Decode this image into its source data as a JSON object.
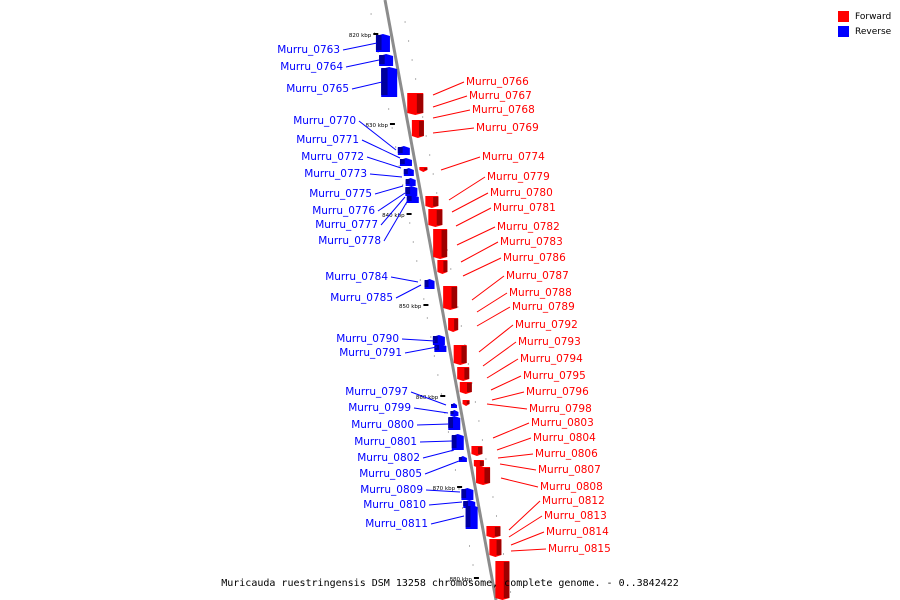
{
  "colors": {
    "forward": "#ff0000",
    "reverse": "#0000ff",
    "chromosome": "#8c8c8c",
    "tick": "#000000"
  },
  "legend": {
    "forward_label": "Forward",
    "reverse_label": "Reverse"
  },
  "caption": "Muricauda ruestringensis DSM 13258 chromosome, complete genome. - 0..3842422",
  "scale_marks": [
    "820 kbp",
    "830 kbp",
    "840 kbp",
    "850 kbp",
    "860 kbp",
    "870 kbp",
    "880 kbp"
  ],
  "forward_genes": [
    "Murru_0766",
    "Murru_0767",
    "Murru_0768",
    "Murru_0769",
    "Murru_0774",
    "Murru_0779",
    "Murru_0780",
    "Murru_0781",
    "Murru_0782",
    "Murru_0783",
    "Murru_0786",
    "Murru_0787",
    "Murru_0788",
    "Murru_0789",
    "Murru_0792",
    "Murru_0793",
    "Murru_0794",
    "Murru_0795",
    "Murru_0796",
    "Murru_0798",
    "Murru_0803",
    "Murru_0804",
    "Murru_0806",
    "Murru_0807",
    "Murru_0808",
    "Murru_0812",
    "Murru_0813",
    "Murru_0814",
    "Murru_0815"
  ],
  "reverse_genes": [
    "Murru_0763",
    "Murru_0764",
    "Murru_0765",
    "Murru_0770",
    "Murru_0771",
    "Murru_0772",
    "Murru_0773",
    "Murru_0775",
    "Murru_0776",
    "Murru_0777",
    "Murru_0778",
    "Murru_0784",
    "Murru_0785",
    "Murru_0790",
    "Murru_0791",
    "Murru_0797",
    "Murru_0799",
    "Murru_0800",
    "Murru_0801",
    "Murru_0802",
    "Murru_0805",
    "Murru_0809",
    "Murru_0810",
    "Murru_0811"
  ]
}
